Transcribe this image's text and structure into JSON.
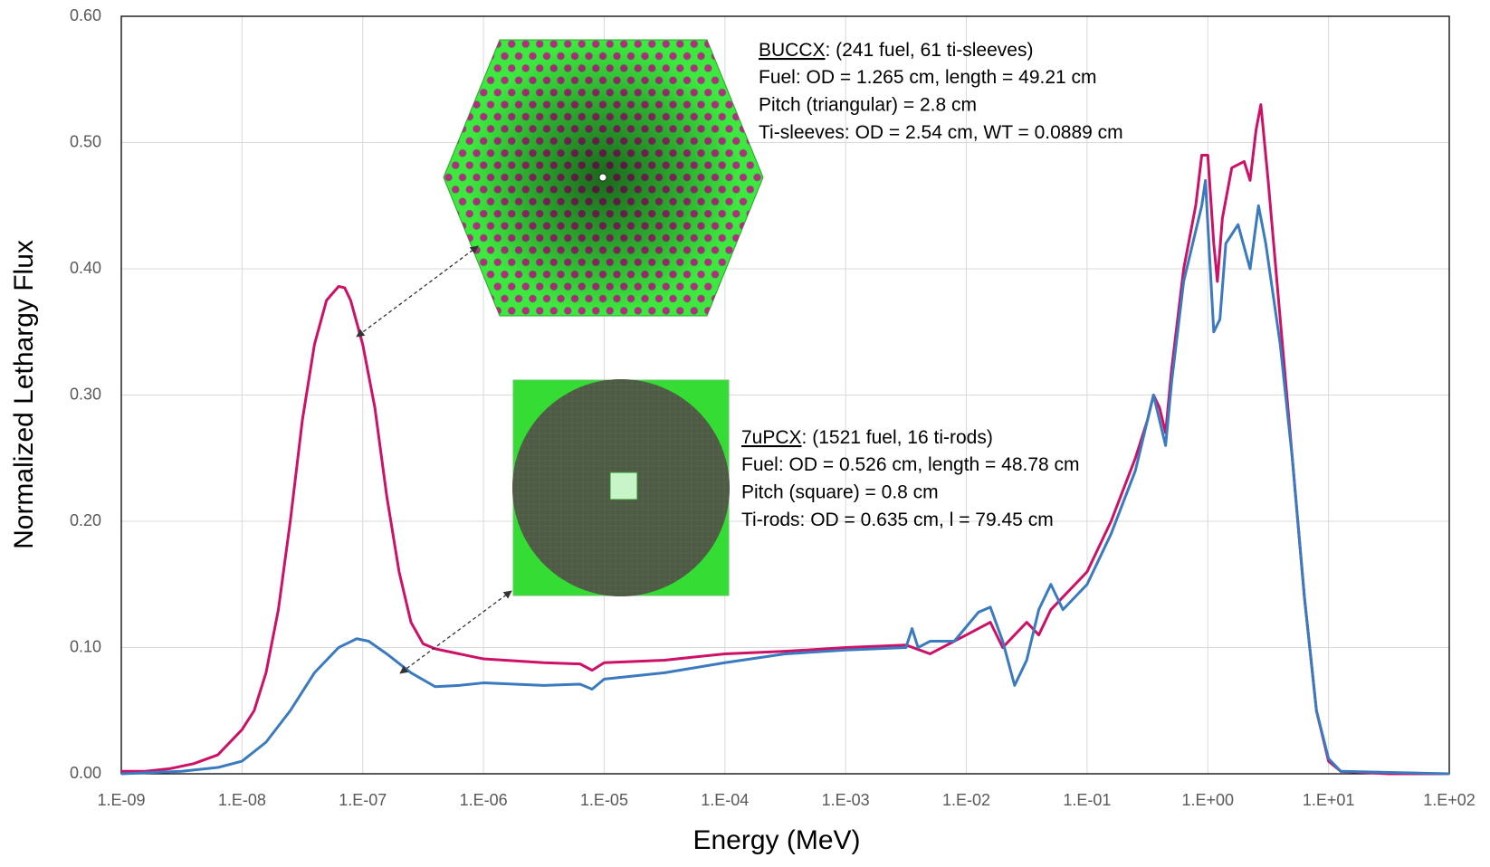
{
  "chart_data": {
    "type": "line",
    "x_label": "Energy (MeV)",
    "y_label": "Normalized Lethargy Flux",
    "log_x": true,
    "grid": true,
    "xlim": [
      1e-09,
      100
    ],
    "ylim": [
      0,
      0.6
    ],
    "xticks": [
      {
        "value": 1e-09,
        "label": "1.E-09"
      },
      {
        "value": 1e-08,
        "label": "1.E-08"
      },
      {
        "value": 1e-07,
        "label": "1.E-07"
      },
      {
        "value": 1e-06,
        "label": "1.E-06"
      },
      {
        "value": 1e-05,
        "label": "1.E-05"
      },
      {
        "value": 0.0001,
        "label": "1.E-04"
      },
      {
        "value": 0.001,
        "label": "1.E-03"
      },
      {
        "value": 0.01,
        "label": "1.E-02"
      },
      {
        "value": 0.1,
        "label": "1.E-01"
      },
      {
        "value": 1,
        "label": "1.E+00"
      },
      {
        "value": 10,
        "label": "1.E+01"
      },
      {
        "value": 100,
        "label": "1.E+02"
      }
    ],
    "yticks": [
      {
        "value": 0,
        "label": "0.00"
      },
      {
        "value": 0.1,
        "label": "0.10"
      },
      {
        "value": 0.2,
        "label": "0.20"
      },
      {
        "value": 0.3,
        "label": "0.30"
      },
      {
        "value": 0.4,
        "label": "0.40"
      },
      {
        "value": 0.5,
        "label": "0.50"
      },
      {
        "value": 0.6,
        "label": "0.60"
      }
    ],
    "series": [
      {
        "color": "#cc1166",
        "x": [
          1e-09,
          1.58e-09,
          2.51e-09,
          3.98e-09,
          6.31e-09,
          1e-08,
          1.26e-08,
          1.58e-08,
          2e-08,
          2.51e-08,
          3.16e-08,
          3.98e-08,
          5.01e-08,
          6.31e-08,
          7.08e-08,
          7.94e-08,
          1e-07,
          1.26e-07,
          1.58e-07,
          2e-07,
          2.51e-07,
          3.16e-07,
          3.98e-07,
          6.31e-07,
          1e-06,
          3.16e-06,
          6.31e-06,
          7.94e-06,
          1e-05,
          3.16e-05,
          0.0001,
          0.000316,
          0.001,
          0.00316,
          0.00501,
          0.01,
          0.0158,
          0.02,
          0.0251,
          0.0316,
          0.0398,
          0.0501,
          0.0631,
          0.1,
          0.158,
          0.251,
          0.316,
          0.355,
          0.398,
          0.447,
          0.501,
          0.631,
          0.794,
          0.891,
          1,
          1.12,
          1.2,
          1.32,
          1.58,
          2,
          2.24,
          2.51,
          2.75,
          3.16,
          3.98,
          5.01,
          6.31,
          7.94,
          10,
          12.6,
          31.6,
          100
        ],
        "values": [
          0.002,
          0.002,
          0.004,
          0.008,
          0.015,
          0.035,
          0.05,
          0.08,
          0.13,
          0.2,
          0.28,
          0.34,
          0.375,
          0.386,
          0.385,
          0.375,
          0.34,
          0.29,
          0.22,
          0.16,
          0.12,
          0.103,
          0.099,
          0.095,
          0.091,
          0.088,
          0.087,
          0.082,
          0.088,
          0.09,
          0.095,
          0.097,
          0.1,
          0.102,
          0.095,
          0.11,
          0.12,
          0.1,
          0.11,
          0.12,
          0.11,
          0.13,
          0.14,
          0.16,
          0.2,
          0.25,
          0.28,
          0.3,
          0.29,
          0.27,
          0.32,
          0.4,
          0.45,
          0.49,
          0.49,
          0.42,
          0.39,
          0.44,
          0.48,
          0.485,
          0.47,
          0.51,
          0.53,
          0.47,
          0.36,
          0.25,
          0.14,
          0.05,
          0.01,
          0.002,
          0,
          0
        ]
      },
      {
        "color": "#3a7abf",
        "x": [
          1e-09,
          3.16e-09,
          6.31e-09,
          1e-08,
          1.58e-08,
          2.51e-08,
          3.98e-08,
          6.31e-08,
          8.91e-08,
          1.12e-07,
          1.58e-07,
          2.51e-07,
          3.98e-07,
          6.31e-07,
          1e-06,
          3.16e-06,
          6.31e-06,
          7.94e-06,
          1e-05,
          3.16e-05,
          0.0001,
          0.000316,
          0.001,
          0.00316,
          0.00355,
          0.00398,
          0.00501,
          0.00794,
          0.0126,
          0.0158,
          0.02,
          0.0251,
          0.0316,
          0.0398,
          0.0501,
          0.0631,
          0.1,
          0.158,
          0.251,
          0.355,
          0.447,
          0.501,
          0.631,
          0.891,
          0.955,
          1.12,
          1.26,
          1.41,
          1.78,
          2.24,
          2.63,
          3.02,
          3.98,
          5.01,
          6.31,
          7.94,
          10,
          12.6,
          100
        ],
        "values": [
          0,
          0.002,
          0.005,
          0.01,
          0.025,
          0.05,
          0.08,
          0.1,
          0.107,
          0.105,
          0.095,
          0.08,
          0.069,
          0.07,
          0.072,
          0.07,
          0.071,
          0.067,
          0.075,
          0.08,
          0.088,
          0.095,
          0.098,
          0.1,
          0.115,
          0.1,
          0.105,
          0.105,
          0.128,
          0.132,
          0.105,
          0.07,
          0.09,
          0.13,
          0.15,
          0.13,
          0.15,
          0.19,
          0.24,
          0.3,
          0.26,
          0.31,
          0.39,
          0.45,
          0.47,
          0.35,
          0.36,
          0.42,
          0.435,
          0.4,
          0.45,
          0.42,
          0.34,
          0.25,
          0.14,
          0.05,
          0.012,
          0.002,
          0
        ]
      }
    ],
    "annotations": [
      {
        "title": "BUCCX",
        "title_rest": ": (241 fuel, 61 ti-sleeves)",
        "lines": [
          "Fuel: OD = 1.265 cm, length = 49.21 cm",
          "Pitch (triangular) = 2.8 cm",
          "Ti-sleeves: OD = 2.54 cm, WT = 0.0889 cm"
        ]
      },
      {
        "title": "7uPCX",
        "title_rest": ": (1521 fuel, 16 ti-rods)",
        "lines": [
          "Fuel: OD = 0.526 cm, length = 48.78 cm",
          "Pitch (square) = 0.8 cm",
          "Ti-rods: OD = 0.635 cm, l = 79.45 cm"
        ]
      }
    ]
  }
}
